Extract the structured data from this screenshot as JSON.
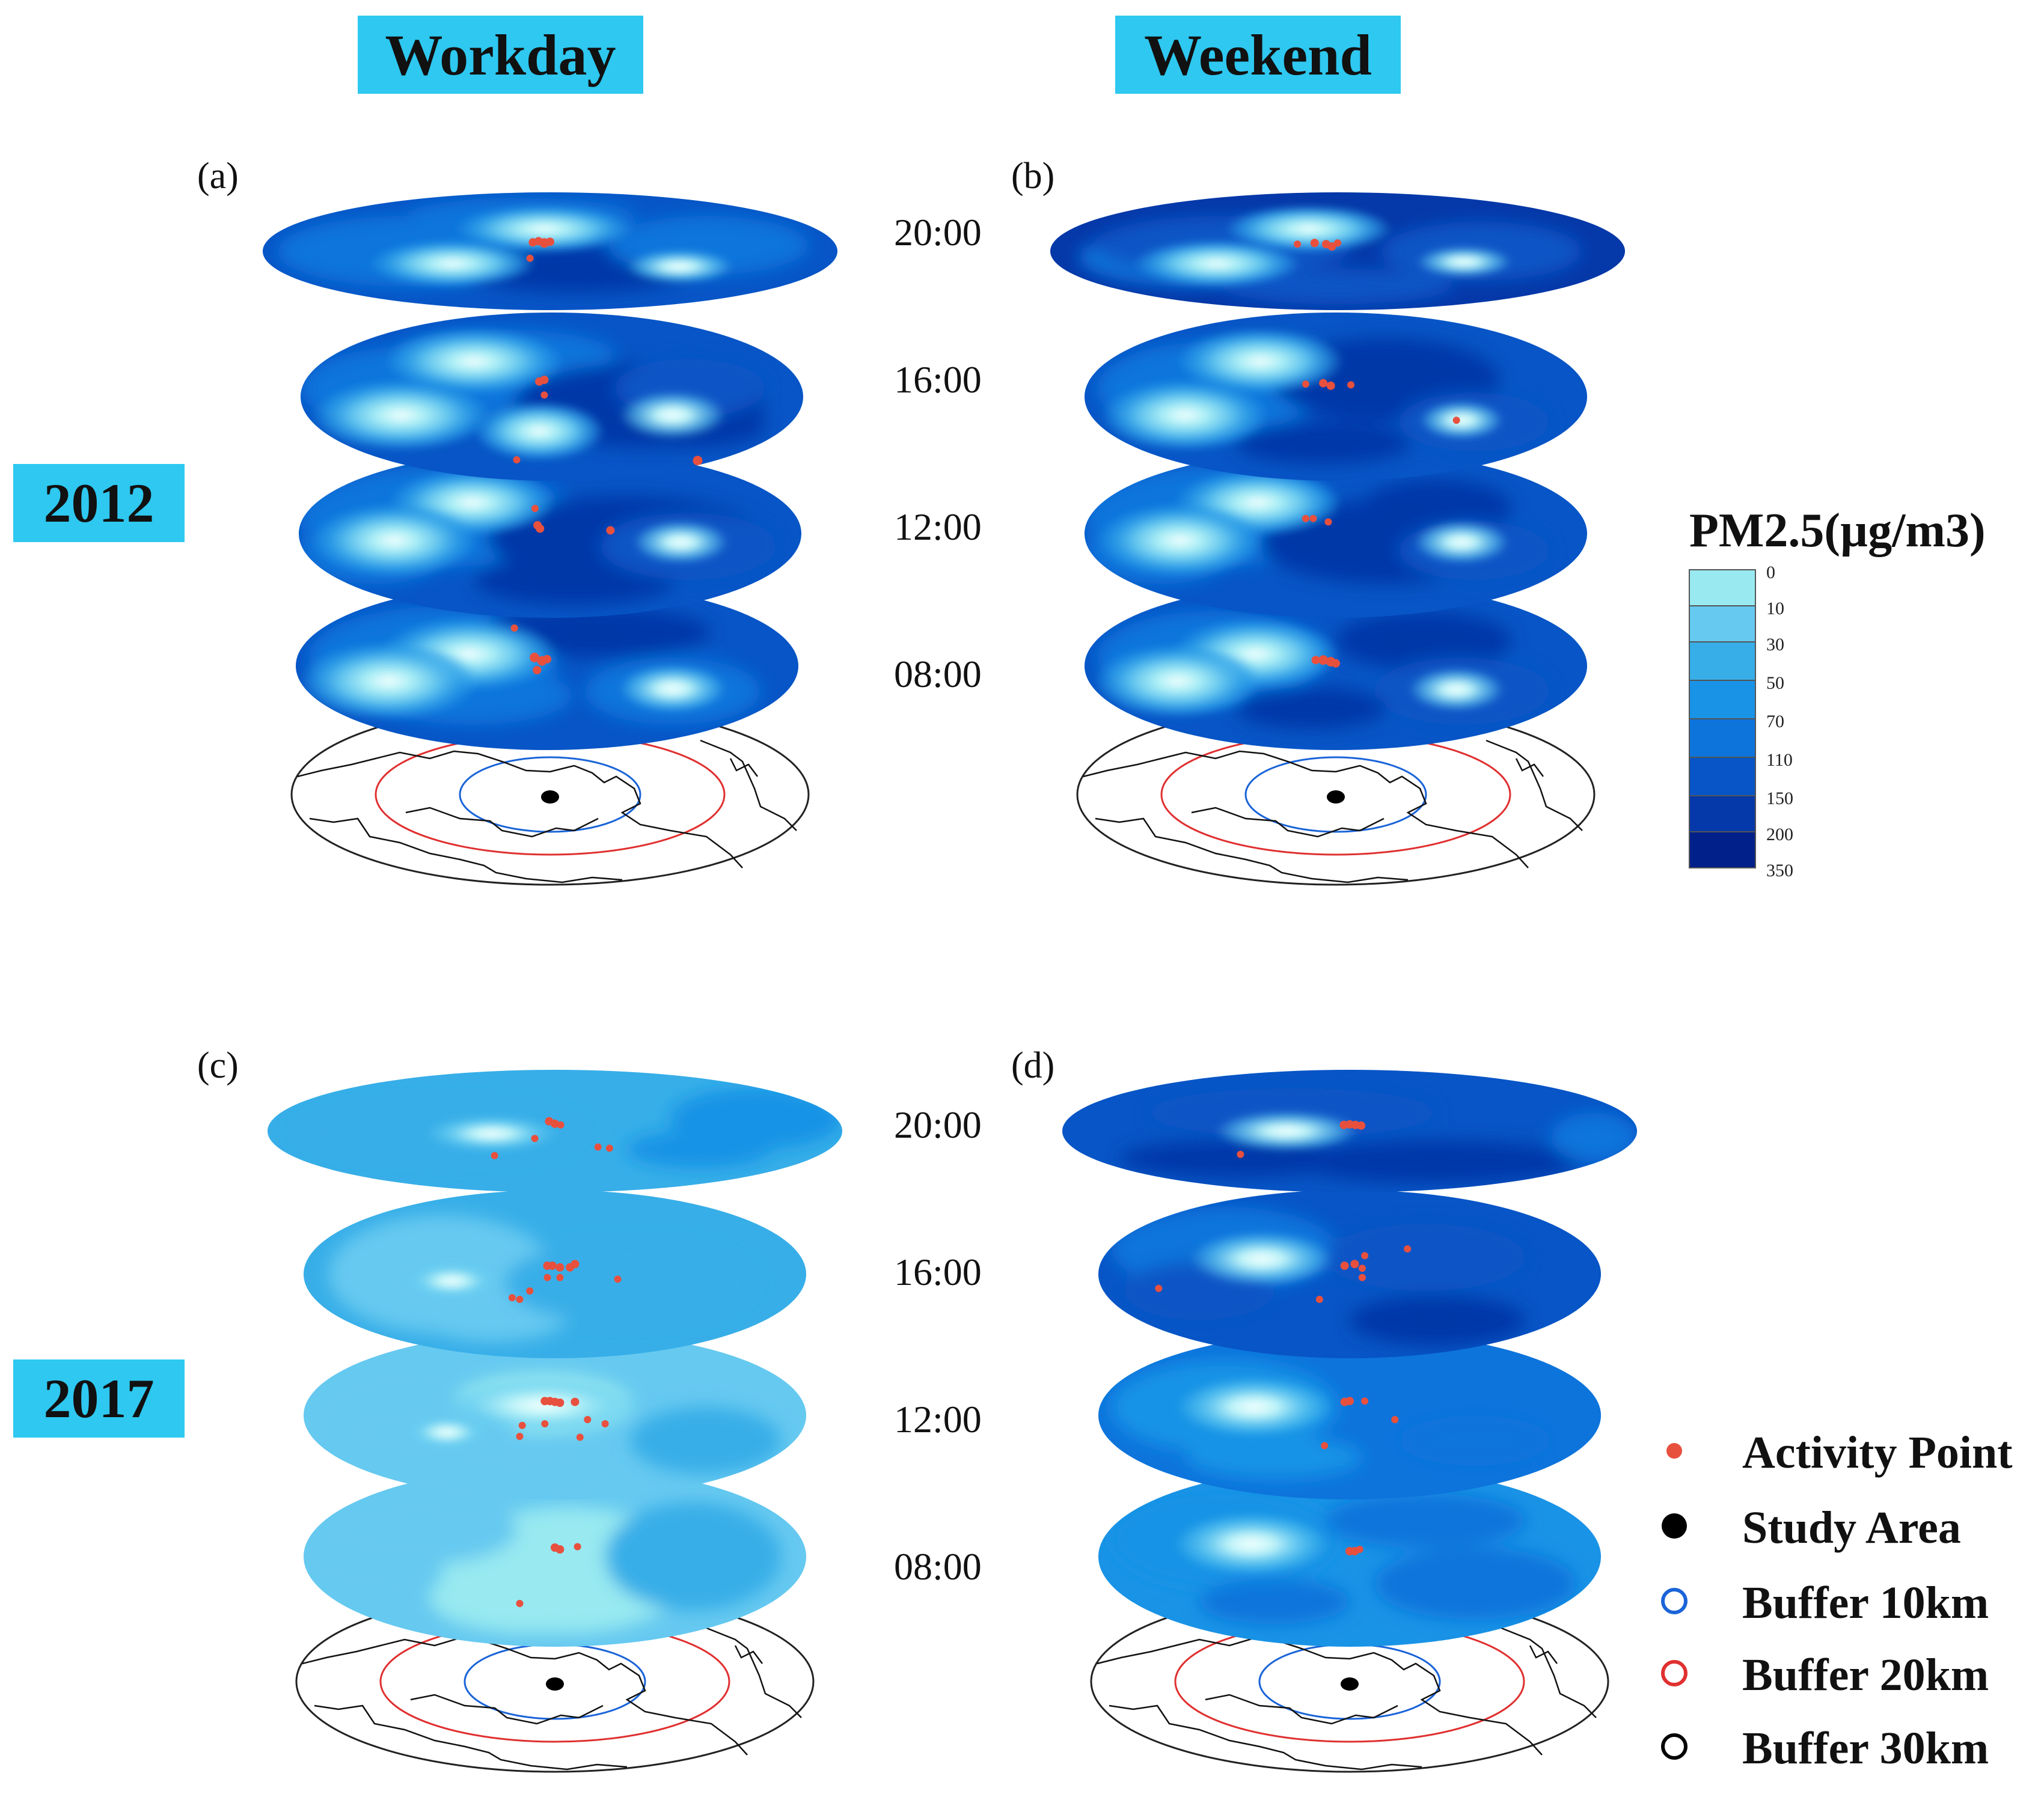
{
  "headers": {
    "workday": "Workday",
    "weekend": "Weekend"
  },
  "years": [
    "2012",
    "2017"
  ],
  "panel_labels": [
    "(a)",
    "(b)",
    "(c)",
    "(d)"
  ],
  "times": [
    "20:00",
    "16:00",
    "12:00",
    "08:00"
  ],
  "legend": {
    "title": "PM2.5(µg/m3)",
    "ticks": [
      "0",
      "10",
      "30",
      "50",
      "70",
      "110",
      "150",
      "200",
      "350"
    ],
    "colors": [
      "#98e9f0",
      "#66c9f0",
      "#37aee8",
      "#1993e6",
      "#0d74dc",
      "#0755c6",
      "#0538a8",
      "#02208a"
    ]
  },
  "symbol_legend": {
    "items": [
      {
        "label": "Activity Point",
        "icon": "activity-point-icon",
        "color": "#e8503e"
      },
      {
        "label": "Study Area",
        "icon": "study-area-icon",
        "color": "#000000"
      },
      {
        "label": "Buffer 10km",
        "icon": "buffer-10km-icon",
        "color": "#1a64d8"
      },
      {
        "label": "Buffer 20km",
        "icon": "buffer-20km-icon",
        "color": "#e03030"
      },
      {
        "label": "Buffer 30km",
        "icon": "buffer-30km-icon",
        "color": "#000000"
      }
    ]
  }
}
